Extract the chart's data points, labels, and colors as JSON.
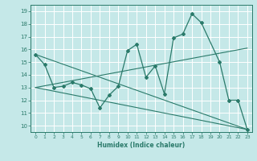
{
  "xlabel": "Humidex (Indice chaleur)",
  "xlim": [
    -0.5,
    23.5
  ],
  "ylim": [
    9.5,
    19.5
  ],
  "yticks": [
    10,
    11,
    12,
    13,
    14,
    15,
    16,
    17,
    18,
    19
  ],
  "xticks": [
    0,
    1,
    2,
    3,
    4,
    5,
    6,
    7,
    8,
    9,
    10,
    11,
    12,
    13,
    14,
    15,
    16,
    17,
    18,
    19,
    20,
    21,
    22,
    23
  ],
  "color": "#2a7a6a",
  "bg_color": "#c5e8e8",
  "grid_color": "#ffffff",
  "line1_x": [
    0,
    1,
    2,
    3,
    4,
    5,
    6,
    7,
    8,
    9,
    10,
    11,
    12,
    13,
    14,
    15,
    16,
    17,
    18,
    20,
    21,
    22,
    23
  ],
  "line1_y": [
    15.6,
    14.8,
    13.0,
    13.1,
    13.4,
    13.2,
    12.9,
    11.4,
    12.4,
    13.1,
    15.9,
    16.4,
    13.8,
    14.7,
    12.5,
    16.9,
    17.2,
    18.8,
    18.1,
    15.0,
    12.0,
    12.0,
    9.7
  ],
  "line2_x": [
    0,
    23
  ],
  "line2_y": [
    15.6,
    9.7
  ],
  "line3_x": [
    0,
    23
  ],
  "line3_y": [
    13.0,
    16.1
  ],
  "line4_x": [
    0,
    23
  ],
  "line4_y": [
    13.0,
    9.7
  ]
}
